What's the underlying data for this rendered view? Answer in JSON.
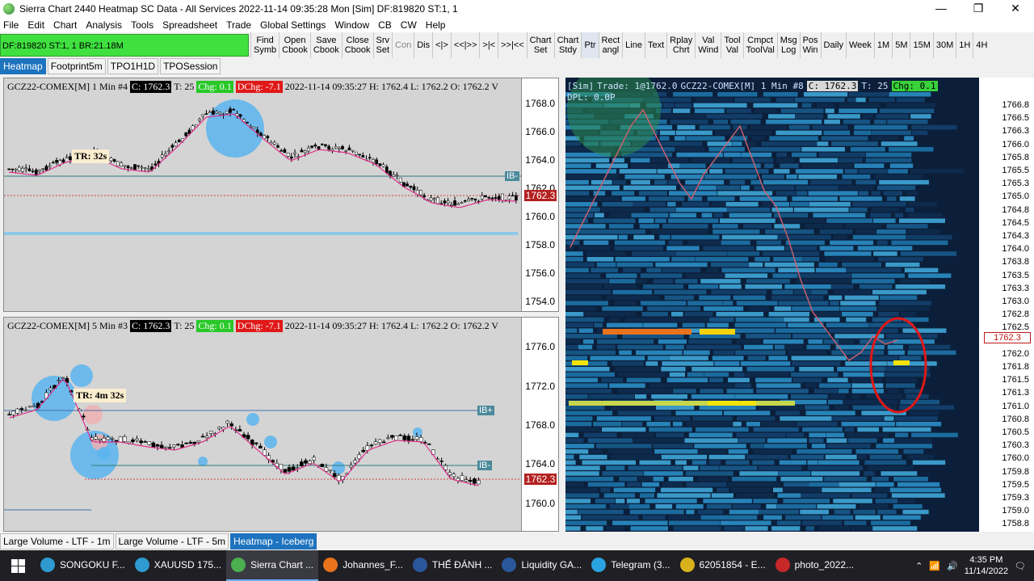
{
  "window": {
    "title": "Sierra Chart 2440 Heatmap  SC Data - All Services 2022-11-14  09:35:28 Mon [Sim]  DF:819820  ST:1, 1",
    "minimize": "—",
    "maximize": "❐",
    "close": "✕"
  },
  "menu": [
    "File",
    "Edit",
    "Chart",
    "Analysis",
    "Tools",
    "Spreadsheet",
    "Trade",
    "Global Settings",
    "Window",
    "CB",
    "CW",
    "Help"
  ],
  "toolbar": {
    "status": "DF:819820  ST:1, 1  BR:21.18M",
    "buttons": [
      {
        "l1": "Find",
        "l2": "Symb"
      },
      {
        "l1": "Open",
        "l2": "Cbook"
      },
      {
        "l1": "Save",
        "l2": "Cbook"
      },
      {
        "l1": "Close",
        "l2": "Cbook"
      },
      {
        "l1": "Srv",
        "l2": "Set"
      },
      {
        "l1": "Con",
        "l2": "",
        "dim": true
      },
      {
        "l1": "Dis",
        "l2": ""
      },
      {
        "l1": "<|>",
        "l2": ""
      },
      {
        "l1": "<<|>>",
        "l2": ""
      },
      {
        "l1": ">|<",
        "l2": ""
      },
      {
        "l1": ">>|<<",
        "l2": ""
      },
      {
        "l1": "Chart",
        "l2": "Set"
      },
      {
        "l1": "Chart",
        "l2": "Stdy"
      },
      {
        "l1": "Ptr",
        "l2": "",
        "pressed": true
      },
      {
        "l1": "Rect",
        "l2": "angl"
      },
      {
        "l1": "Line",
        "l2": ""
      },
      {
        "l1": "Text",
        "l2": ""
      },
      {
        "l1": "Rplay",
        "l2": "Chrt"
      },
      {
        "l1": "Val",
        "l2": "Wind"
      },
      {
        "l1": "Tool",
        "l2": "Val"
      },
      {
        "l1": "Cmpct",
        "l2": "ToolVal"
      },
      {
        "l1": "Msg",
        "l2": "Log"
      },
      {
        "l1": "Pos",
        "l2": "Win"
      },
      {
        "l1": "Daily",
        "l2": ""
      },
      {
        "l1": "Week",
        "l2": ""
      },
      {
        "l1": "1M",
        "l2": ""
      },
      {
        "l1": "5M",
        "l2": ""
      },
      {
        "l1": "15M",
        "l2": ""
      },
      {
        "l1": "30M",
        "l2": ""
      },
      {
        "l1": "1H",
        "l2": ""
      },
      {
        "l1": "4H",
        "l2": ""
      }
    ]
  },
  "chart_tabs": [
    {
      "label": "Heatmap",
      "active": true
    },
    {
      "label": "Footprint5m",
      "active": false
    },
    {
      "label": "TPO1H1D",
      "active": false
    },
    {
      "label": "TPOSession",
      "active": false
    }
  ],
  "chart1": {
    "symbol": "GCZ22-COMEX[M]  1 Min  #4",
    "close": "C: 1762.3",
    "trades": "T: 25",
    "chg": "Chg: 0.1",
    "dchg": "DChg: -7.1",
    "info": "2022-11-14 09:35:27 H: 1762.4  L: 1762.2  O: 1762.2  V",
    "tr_label": "TR: 32s",
    "last_price": "1762.3",
    "ib_label": "IB-",
    "ticks": [
      "1768.0",
      "1766.0",
      "1764.0",
      "1762.0",
      "1760.0",
      "1758.0",
      "1756.0",
      "1754.0"
    ],
    "tick_values": [
      1768.0,
      1766.0,
      1764.0,
      1762.0,
      1760.0,
      1758.0,
      1756.0,
      1754.0
    ],
    "ylim": [
      1753.2,
      1769.8
    ]
  },
  "chart2": {
    "symbol": "GCZ22-COMEX[M]  5 Min  #3",
    "close": "C: 1762.3",
    "trades": "T: 25",
    "chg": "Chg: 0.1",
    "dchg": "DChg: -7.1",
    "info": "2022-11-14 09:35:27 H: 1762.4  L: 1762.2  O: 1762.2  V",
    "tr_label": "TR: 4m 32s",
    "last_price": "1762.3",
    "ib_plus": "IB+",
    "ib_minus": "IB-",
    "ticks": [
      "1776.0",
      "1772.0",
      "1768.0",
      "1764.0",
      "1760.0"
    ],
    "tick_values": [
      1776.0,
      1772.0,
      1768.0,
      1764.0,
      1760.0
    ],
    "ylim": [
      1757.0,
      1779.0
    ]
  },
  "heatmap": {
    "sim": "[Sim]",
    "trade": "Trade: 1@1762.0",
    "symbol": "GCZ22-COMEX[M]  1 Min   #8",
    "close": "C: 1762.3",
    "trades": "T: 25",
    "chg": "Chg: 0.1",
    "dpl": "DPL: 0.0P",
    "last_price": "1762.3",
    "ticks": [
      "1766.8",
      "1766.5",
      "1766.3",
      "1766.0",
      "1765.8",
      "1765.5",
      "1765.3",
      "1765.0",
      "1764.8",
      "1764.5",
      "1764.3",
      "1764.0",
      "1763.8",
      "1763.5",
      "1763.3",
      "1763.0",
      "1762.8",
      "1762.5",
      "1762.3",
      "1762.0",
      "1761.8",
      "1761.5",
      "1761.3",
      "1761.0",
      "1760.8",
      "1760.5",
      "1760.3",
      "1760.0",
      "1759.8",
      "1759.5",
      "1759.3",
      "1759.0",
      "1758.8"
    ]
  },
  "bottom_tabs": [
    {
      "label": "Large Volume - LTF - 1m",
      "active": false
    },
    {
      "label": "Large Volume - LTF - 5m",
      "active": false
    },
    {
      "label": "Heatmap - Iceberg",
      "active": true
    }
  ],
  "taskbar": {
    "items": [
      {
        "label": "SONGOKU F...",
        "color": "#2e9ad0"
      },
      {
        "label": "XAUUSD 175...",
        "color": "#2e9ad0"
      },
      {
        "label": "Sierra Chart ...",
        "color": "#4caf50",
        "active": true
      },
      {
        "label": "Johannes_F...",
        "color": "#e8731c"
      },
      {
        "label": "THẾ ĐÁNH ...",
        "color": "#2b579a"
      },
      {
        "label": "Liquidity GA...",
        "color": "#2b579a"
      },
      {
        "label": "Telegram (3...",
        "color": "#2aa3e0"
      },
      {
        "label": "62051854 - E...",
        "color": "#d8b21c"
      },
      {
        "label": "photo_2022...",
        "color": "#c62828"
      }
    ],
    "time": "4:35 PM",
    "date": "11/14/2022"
  }
}
